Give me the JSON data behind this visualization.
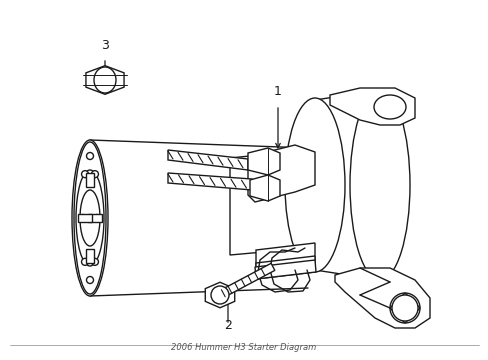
{
  "title": "2006 Hummer H3 Starter Diagram",
  "background_color": "#ffffff",
  "line_color": "#1a1a1a",
  "line_width": 1.0,
  "fig_width": 4.89,
  "fig_height": 3.6,
  "dpi": 100,
  "label_1": "1",
  "label_2": "2",
  "label_3": "3"
}
